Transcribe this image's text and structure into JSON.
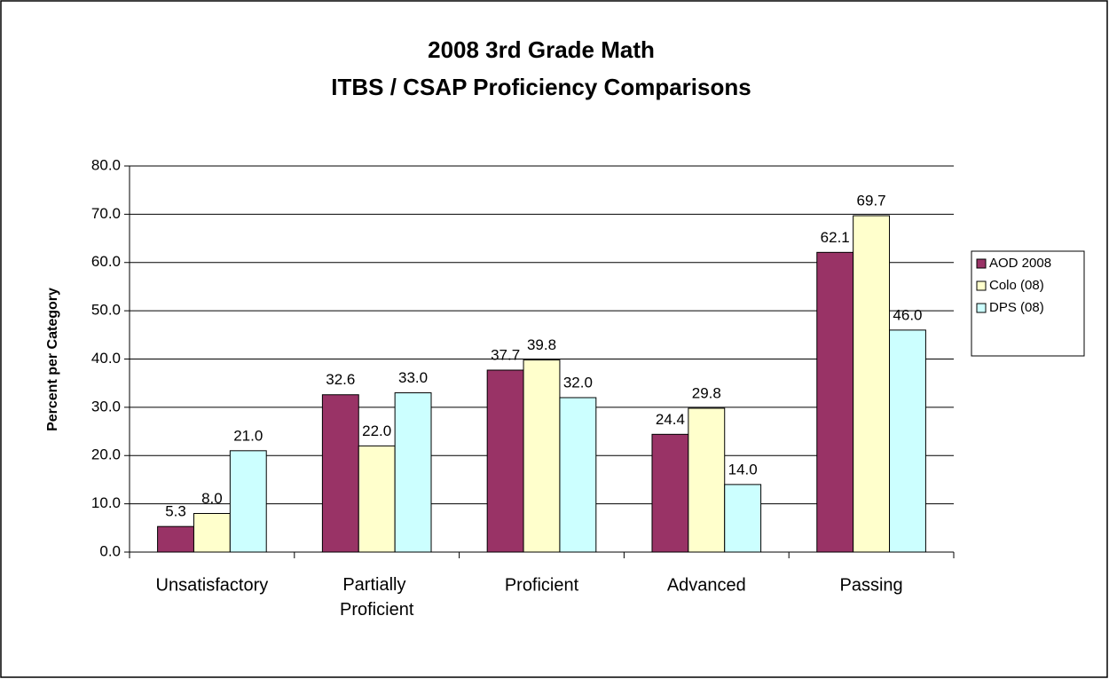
{
  "chart_data": {
    "type": "bar",
    "title": "2008 3rd Grade Math",
    "subtitle": "ITBS / CSAP Proficiency Comparisons",
    "y_label": "Percent per Category",
    "categories": [
      "Unsatisfactory",
      "Partially Proficient",
      "Proficient",
      "Advanced",
      "Passing"
    ],
    "series": [
      {
        "name": "AOD 2008",
        "color": "#993366",
        "values": [
          5.3,
          32.6,
          37.7,
          24.4,
          62.1
        ],
        "value_labels": [
          "5.3",
          "32.6",
          "37.7",
          "24.4",
          "62.1"
        ]
      },
      {
        "name": "Colo (08)",
        "color": "#ffffcc",
        "values": [
          8,
          22,
          39.8,
          29.8,
          69.7
        ],
        "value_labels": [
          "8.0",
          "22.0",
          "39.8",
          "29.8",
          "69.7"
        ]
      },
      {
        "name": "DPS (08)",
        "color": "#ccffff",
        "values": [
          21,
          33,
          32,
          14,
          46
        ],
        "value_labels": [
          "21.0",
          "33.0",
          "32.0",
          "14.0",
          "46.0"
        ]
      }
    ],
    "ylim": [
      0,
      80
    ],
    "yticks": [
      {
        "value": 0,
        "label": "0.0"
      },
      {
        "value": 10,
        "label": "10.0"
      },
      {
        "value": 20,
        "label": "20.0"
      },
      {
        "value": 30,
        "label": "30.0"
      },
      {
        "value": 40,
        "label": "40.0"
      },
      {
        "value": 50,
        "label": "50.0"
      },
      {
        "value": 60,
        "label": "60.0"
      },
      {
        "value": 70,
        "label": "70.0"
      },
      {
        "value": 80,
        "label": "80.0"
      }
    ],
    "grid": true,
    "legend": "right"
  }
}
